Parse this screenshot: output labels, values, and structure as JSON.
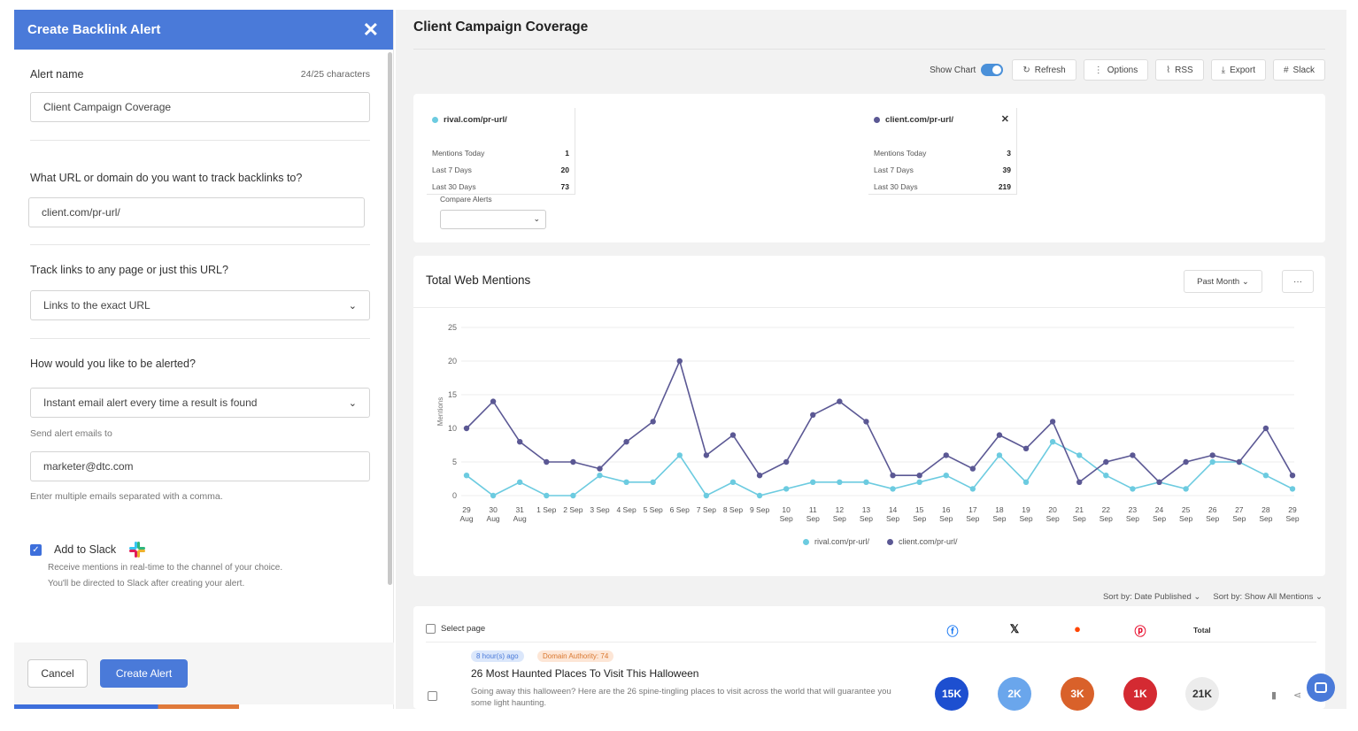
{
  "panel": {
    "title": "Create Backlink Alert",
    "close_icon": "close-icon",
    "alert_name_label": "Alert name",
    "char_count": "24/25 characters",
    "alert_name_value": "Client Campaign Coverage",
    "url_question": "What URL or domain do you want to track backlinks to?",
    "url_value": "client.com/pr-url/",
    "track_question": "Track links to any page or just this URL?",
    "track_value": "Links to the exact URL",
    "alert_question": "How would you like to be alerted?",
    "alert_value": "Instant email alert every time a result is found",
    "send_to_label": "Send alert emails to",
    "email_value": "marketer@dtc.com",
    "email_hint": "Enter multiple emails separated with a comma.",
    "slack_label": "Add to Slack",
    "slack_desc_1": "Receive mentions in real-time to the channel of your choice.",
    "slack_desc_2": "You'll be directed to Slack after creating your alert.",
    "cancel_label": "Cancel",
    "create_label": "Create Alert"
  },
  "main": {
    "title": "Client Campaign Coverage",
    "toolbar": {
      "show_chart": "Show Chart",
      "refresh": "Refresh",
      "options": "Options",
      "rss": "RSS",
      "export": "Export",
      "slack": "Slack"
    },
    "stats": [
      {
        "name": "rival.com/pr-url/",
        "color": "#6ccbe0",
        "today_label": "Mentions Today",
        "today": "1",
        "week_label": "Last 7 Days",
        "week": "20",
        "month_label": "Last 30 Days",
        "month": "73"
      },
      {
        "name": "client.com/pr-url/",
        "color": "#5b5894",
        "today_label": "Mentions Today",
        "today": "3",
        "week_label": "Last 7 Days",
        "week": "39",
        "month_label": "Last 30 Days",
        "month": "219"
      }
    ],
    "compare_label": "Compare Alerts",
    "chart_title": "Total Web Mentions",
    "past_month": "Past Month",
    "more": "···",
    "sort_date": "Sort by: Date Published",
    "sort_show": "Sort by: Show All Mentions",
    "select_page": "Select page",
    "total_header": "Total",
    "article": {
      "time_badge": "8 hour(s) ago",
      "authority_badge": "Domain Authority: 74",
      "title": "26 Most Haunted Places To Visit This Halloween",
      "desc": "Going away this halloween? Here are the 26 spine-tingling places to visit across the world that will guarantee you some light haunting.",
      "facebook": "15K",
      "x": "2K",
      "reddit": "3K",
      "pinterest": "1K",
      "total": "21K"
    }
  },
  "chart_data": {
    "type": "line",
    "title": "Total Web Mentions",
    "ylabel": "Mentions",
    "xlabel": "",
    "ylim": [
      0,
      25
    ],
    "yticks": [
      0,
      5,
      10,
      15,
      20,
      25
    ],
    "categories": [
      [
        "29",
        "Aug"
      ],
      [
        "30",
        "Aug"
      ],
      [
        "31",
        "Aug"
      ],
      [
        "1 Sep",
        ""
      ],
      [
        "2 Sep",
        ""
      ],
      [
        "3 Sep",
        ""
      ],
      [
        "4 Sep",
        ""
      ],
      [
        "5 Sep",
        ""
      ],
      [
        "6 Sep",
        ""
      ],
      [
        "7 Sep",
        ""
      ],
      [
        "8 Sep",
        ""
      ],
      [
        "9 Sep",
        ""
      ],
      [
        "10",
        "Sep"
      ],
      [
        "11",
        "Sep"
      ],
      [
        "12",
        "Sep"
      ],
      [
        "13",
        "Sep"
      ],
      [
        "14",
        "Sep"
      ],
      [
        "15",
        "Sep"
      ],
      [
        "16",
        "Sep"
      ],
      [
        "17",
        "Sep"
      ],
      [
        "18",
        "Sep"
      ],
      [
        "19",
        "Sep"
      ],
      [
        "20",
        "Sep"
      ],
      [
        "21",
        "Sep"
      ],
      [
        "22",
        "Sep"
      ],
      [
        "23",
        "Sep"
      ],
      [
        "24",
        "Sep"
      ],
      [
        "25",
        "Sep"
      ],
      [
        "26",
        "Sep"
      ],
      [
        "27",
        "Sep"
      ],
      [
        "28",
        "Sep"
      ],
      [
        "29",
        "Sep"
      ]
    ],
    "series": [
      {
        "name": "rival.com/pr-url/",
        "color": "#6ccbe0",
        "values": [
          3,
          0,
          2,
          0,
          0,
          3,
          2,
          2,
          6,
          0,
          2,
          0,
          1,
          2,
          2,
          2,
          1,
          2,
          3,
          1,
          6,
          2,
          8,
          6,
          3,
          1,
          2,
          1,
          5,
          5,
          3,
          1
        ]
      },
      {
        "name": "client.com/pr-url/",
        "color": "#5b5894",
        "values": [
          10,
          14,
          8,
          5,
          5,
          4,
          8,
          11,
          20,
          6,
          9,
          3,
          5,
          12,
          14,
          11,
          3,
          3,
          6,
          4,
          9,
          7,
          11,
          2,
          5,
          6,
          2,
          5,
          6,
          5,
          10,
          3
        ]
      }
    ],
    "grid": true,
    "legend": "bottom"
  }
}
